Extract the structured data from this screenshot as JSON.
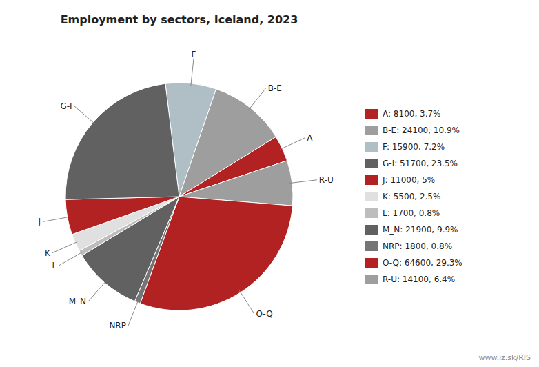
{
  "chart_data": {
    "type": "pie",
    "title": "Employment by sectors, Iceland, 2023",
    "categories": [
      "F",
      "B-E",
      "A",
      "R-U",
      "O-Q",
      "NRP",
      "M_N",
      "L",
      "K",
      "J",
      "G-I"
    ],
    "values": [
      15900,
      24100,
      8100,
      14100,
      64600,
      1800,
      21900,
      1700,
      5500,
      11000,
      51700
    ],
    "colors": [
      "#b0bec5",
      "#9e9e9e",
      "#b22222",
      "#9e9e9e",
      "#b22222",
      "#757575",
      "#616161",
      "#bdbdbd",
      "#e0e0e0",
      "#b22222",
      "#616161"
    ],
    "legend": "right",
    "legend_labels": [
      "A: 8100, 3.7%",
      "B-E: 24100, 10.9%",
      "F: 15900, 7.2%",
      "G-I: 51700, 23.5%",
      "J: 11000, 5%",
      "K: 5500, 2.5%",
      "L: 1700, 0.8%",
      "M_N: 21900, 9.9%",
      "NRP: 1800, 0.8%",
      "O-Q: 64600, 29.3%",
      "R-U: 14100, 6.4%"
    ],
    "legend_colors": [
      "#b22222",
      "#9e9e9e",
      "#b0bec5",
      "#616161",
      "#b22222",
      "#e0e0e0",
      "#bdbdbd",
      "#616161",
      "#757575",
      "#b22222",
      "#9e9e9e"
    ],
    "annotations": [
      "www.iz.sk/RIS"
    ]
  }
}
